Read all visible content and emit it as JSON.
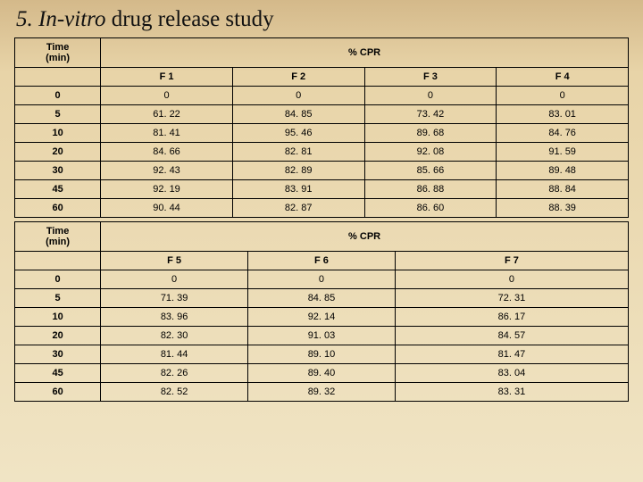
{
  "title": {
    "lead": "5. In-vitro",
    "rest": " drug release study"
  },
  "tables": {
    "t1": {
      "row_header": "Time\n(min)",
      "group_header": "% CPR",
      "columns": [
        "F 1",
        "F 2",
        "F 3",
        "F 4"
      ],
      "rows": [
        {
          "time": "0",
          "v": [
            "0",
            "0",
            "0",
            "0"
          ]
        },
        {
          "time": "5",
          "v": [
            "61. 22",
            "84. 85",
            "73. 42",
            "83. 01"
          ]
        },
        {
          "time": "10",
          "v": [
            "81. 41",
            "95. 46",
            "89. 68",
            "84. 76"
          ]
        },
        {
          "time": "20",
          "v": [
            "84. 66",
            "82. 81",
            "92. 08",
            "91. 59"
          ]
        },
        {
          "time": "30",
          "v": [
            "92. 43",
            "82. 89",
            "85. 66",
            "89. 48"
          ]
        },
        {
          "time": "45",
          "v": [
            "92. 19",
            "83. 91",
            "86. 88",
            "88. 84"
          ]
        },
        {
          "time": "60",
          "v": [
            "90. 44",
            "82. 87",
            "86. 60",
            "88. 39"
          ]
        }
      ],
      "col_widths": [
        "14%",
        "21.5%",
        "21.5%",
        "21.5%",
        "21.5%"
      ]
    },
    "t2": {
      "row_header": "Time\n(min)",
      "group_header": "% CPR",
      "columns": [
        "F 5",
        "F 6",
        "F 7"
      ],
      "rows": [
        {
          "time": "0",
          "v": [
            "0",
            "0",
            "0"
          ]
        },
        {
          "time": "5",
          "v": [
            "71. 39",
            "84. 85",
            "72. 31"
          ]
        },
        {
          "time": "10",
          "v": [
            "83. 96",
            "92. 14",
            "86. 17"
          ]
        },
        {
          "time": "20",
          "v": [
            "82. 30",
            "91. 03",
            "84. 57"
          ]
        },
        {
          "time": "30",
          "v": [
            "81. 44",
            "89. 10",
            "81. 47"
          ]
        },
        {
          "time": "45",
          "v": [
            "82. 26",
            "89. 40",
            "83. 04"
          ]
        },
        {
          "time": "60",
          "v": [
            "82. 52",
            "89. 32",
            "83. 31"
          ]
        }
      ],
      "col_widths": [
        "14%",
        "24%",
        "24%",
        "38%"
      ]
    }
  },
  "style": {
    "background_gradient": [
      "#d4b98a",
      "#e8d4a8",
      "#f0e4c4"
    ],
    "border_color": "#000000",
    "title_fontsize": 25,
    "cell_fontsize": 11
  }
}
